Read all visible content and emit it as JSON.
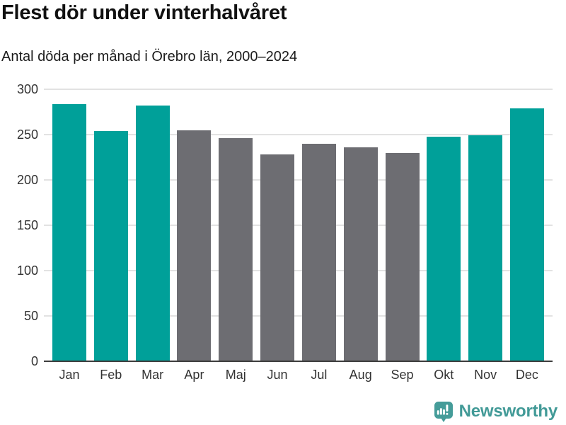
{
  "header": {
    "title": "Flest dör under vinterhalvåret",
    "subtitle": "Antal döda per månad i Örebro län, 2000–2024"
  },
  "chart_data": {
    "type": "bar",
    "title": "Flest dör under vinterhalvåret",
    "subtitle": "Antal döda per månad i Örebro län, 2000–2024",
    "categories": [
      "Jan",
      "Feb",
      "Mar",
      "Apr",
      "Maj",
      "Jun",
      "Jul",
      "Aug",
      "Sep",
      "Okt",
      "Nov",
      "Dec"
    ],
    "values": [
      284,
      254,
      282,
      255,
      246,
      228,
      240,
      236,
      230,
      248,
      249,
      279
    ],
    "groups": [
      "winter",
      "winter",
      "winter",
      "summer",
      "summer",
      "summer",
      "summer",
      "summer",
      "summer",
      "winter",
      "winter",
      "winter"
    ],
    "group_colors": {
      "winter": "#00a099",
      "summer": "#6d6d72"
    },
    "xlabel": "",
    "ylabel": "",
    "ylim": [
      0,
      300
    ],
    "yticks": [
      0,
      50,
      100,
      150,
      200,
      250,
      300
    ],
    "grid": true,
    "legend": "none"
  },
  "footer": {
    "brand": "Newsworthy"
  },
  "colors": {
    "bar_winter": "#00a099",
    "bar_summer": "#6d6d72",
    "gridline": "#e2e2e2",
    "axis_line": "#3d3d3d",
    "tick_label": "#333333",
    "brand_teal": "#429a97"
  }
}
